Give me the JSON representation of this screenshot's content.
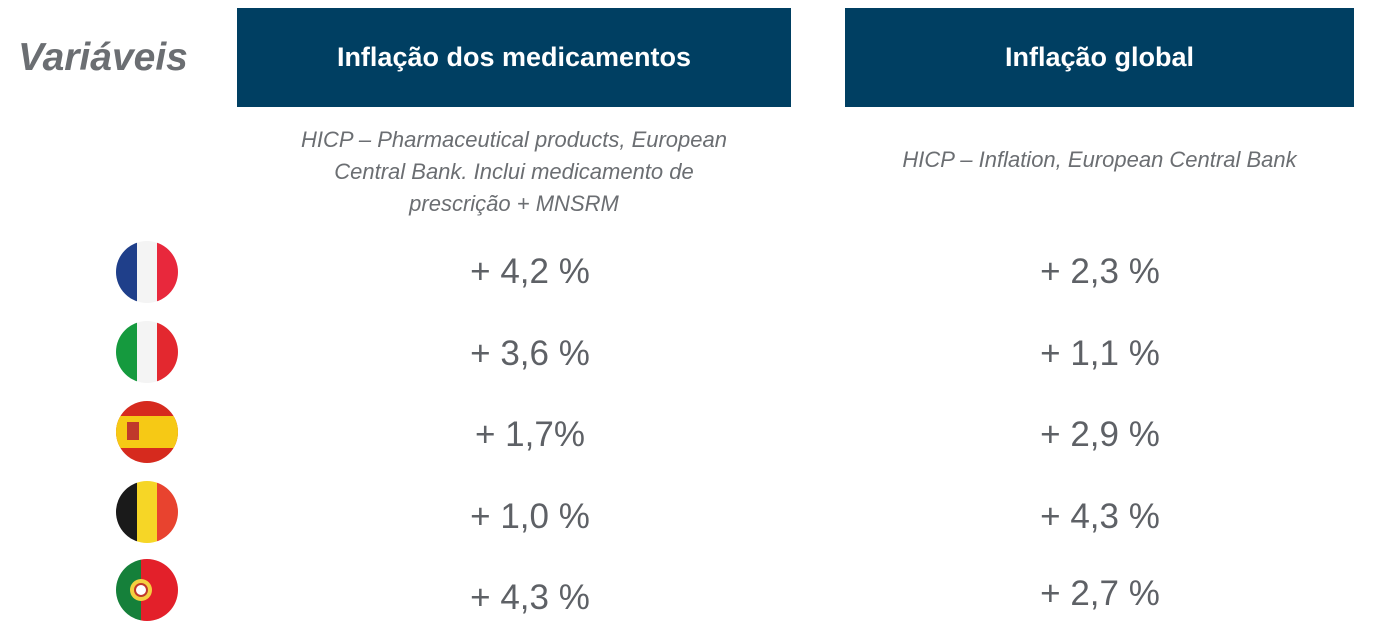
{
  "header": {
    "label": "Variáveis"
  },
  "columns": [
    {
      "title": "Inflação dos medicamentos",
      "subtitle_lines": [
        "HICP – Pharmaceutical products, European",
        "Central Bank. Inclui medicamento de",
        "prescrição + MNSRM"
      ]
    },
    {
      "title": "Inflação global",
      "subtitle_lines": [
        "HICP – Inflation, European Central Bank"
      ]
    }
  ],
  "table": {
    "rows": [
      [
        "+ 4,2 %",
        "+ 2,3 %"
      ],
      [
        "+ 3,6 %",
        "+ 1,1 %"
      ],
      [
        "+ 1,7%",
        "+ 2,9 %"
      ],
      [
        "+ 1,0 %",
        "+ 4,3 %"
      ],
      [
        "+ 4,3 %",
        "+ 2,7 %"
      ]
    ]
  }
}
